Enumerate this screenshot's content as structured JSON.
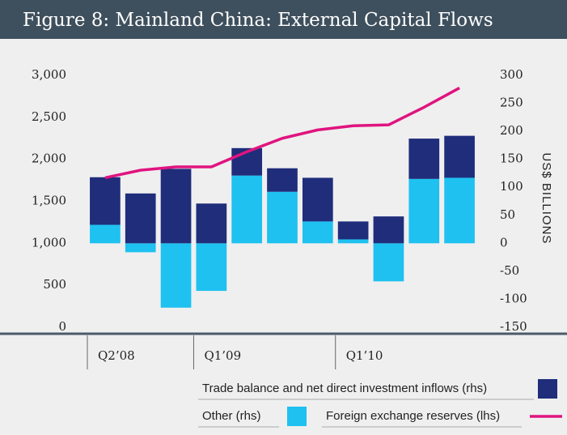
{
  "chart_data": {
    "type": "bar",
    "title": "Figure 8: Mainland China: External Capital Flows",
    "categories": [
      "Q2’08",
      null,
      null,
      "Q1’09",
      null,
      null,
      null,
      "Q1’10",
      null,
      null,
      null
    ],
    "series": [
      {
        "name": "Trade balance and net direct investment inflows (rhs)",
        "color": "#1f2d7b",
        "axis": "y2",
        "type": "bar",
        "values": [
          85,
          89,
          133,
          71,
          49,
          42,
          78,
          32,
          48,
          72,
          75
        ]
      },
      {
        "name": "Other (rhs)",
        "color": "#1ec1f0",
        "axis": "y2",
        "type": "bar",
        "values": [
          33,
          -16,
          -115,
          -85,
          121,
          92,
          39,
          7,
          -68,
          115,
          117
        ]
      },
      {
        "name": "Foreign exchange reserves (lhs)",
        "color": "#e0147f",
        "axis": "y",
        "type": "line",
        "values": [
          1780,
          1870,
          1910,
          1910,
          2090,
          2250,
          2350,
          2400,
          2410,
          2620,
          2850
        ]
      }
    ],
    "ylim": [
      0,
      3000
    ],
    "yticks": [
      0,
      500,
      {
        "value": 1000,
        "label": "1,000"
      },
      {
        "value": 1500,
        "label": "1,500"
      },
      {
        "value": 2000,
        "label": "2,000"
      },
      {
        "value": 2500,
        "label": "2,500"
      },
      {
        "value": 3000,
        "label": "3,000"
      }
    ],
    "y2lim": [
      -150,
      300
    ],
    "y2ticks": [
      -150,
      -100,
      -50,
      0,
      50,
      100,
      150,
      200,
      250,
      300
    ],
    "y2label": "US$ BILLIONS"
  }
}
